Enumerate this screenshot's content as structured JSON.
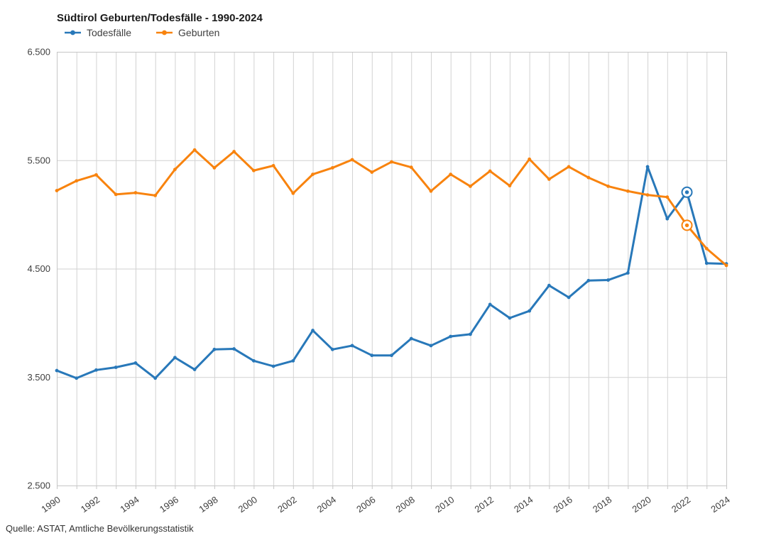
{
  "chart_data": {
    "type": "line",
    "title": "Südtirol Geburten/Todesfälle - 1990-2024",
    "source": "Quelle: ASTAT, Amtliche Bevölkerungsstatistik",
    "x": [
      1990,
      1991,
      1992,
      1993,
      1994,
      1995,
      1996,
      1997,
      1998,
      1999,
      2000,
      2001,
      2002,
      2003,
      2004,
      2005,
      2006,
      2007,
      2008,
      2009,
      2010,
      2011,
      2012,
      2013,
      2014,
      2015,
      2016,
      2017,
      2018,
      2019,
      2020,
      2021,
      2022,
      2023,
      2024
    ],
    "series": [
      {
        "name": "Todesfälle",
        "color": "#2878b9",
        "values": [
          3560,
          3490,
          3565,
          3590,
          3630,
          3490,
          3680,
          3570,
          3755,
          3760,
          3650,
          3600,
          3650,
          3930,
          3755,
          3790,
          3700,
          3700,
          3855,
          3790,
          3875,
          3895,
          4170,
          4045,
          4110,
          4345,
          4235,
          4390,
          4395,
          4460,
          5440,
          4960,
          5205,
          4550,
          4545
        ]
      },
      {
        "name": "Geburten",
        "color": "#f8830e",
        "values": [
          5220,
          5310,
          5365,
          5185,
          5200,
          5175,
          5415,
          5595,
          5430,
          5580,
          5405,
          5450,
          5195,
          5370,
          5430,
          5505,
          5390,
          5485,
          5435,
          5215,
          5370,
          5260,
          5400,
          5265,
          5510,
          5325,
          5440,
          5340,
          5260,
          5215,
          5180,
          5160,
          4900,
          4685,
          4530
        ]
      }
    ],
    "xlabel": "",
    "ylabel": "",
    "ylim": [
      2500,
      6500
    ],
    "yticks": [
      2500,
      3500,
      4500,
      5500,
      6500
    ],
    "ytick_labels": [
      "2.500",
      "3.500",
      "4.500",
      "5.500",
      "6.500"
    ],
    "xtick_step": 2,
    "xtick_labels": [
      "1990",
      "1992",
      "1994",
      "1996",
      "1998",
      "2000",
      "2002",
      "2004",
      "2006",
      "2008",
      "2010",
      "2012",
      "2014",
      "2016",
      "2018",
      "2020",
      "2022",
      "2024"
    ],
    "grid": "vertical gridline every year, horizontal gridline every 1000",
    "grid_color": "#d2d2d2",
    "axis_text_color": "#3f3f3f",
    "legend_position": "top-left",
    "highlight_year": 2022,
    "highlight_style": "ring marker on both series"
  }
}
